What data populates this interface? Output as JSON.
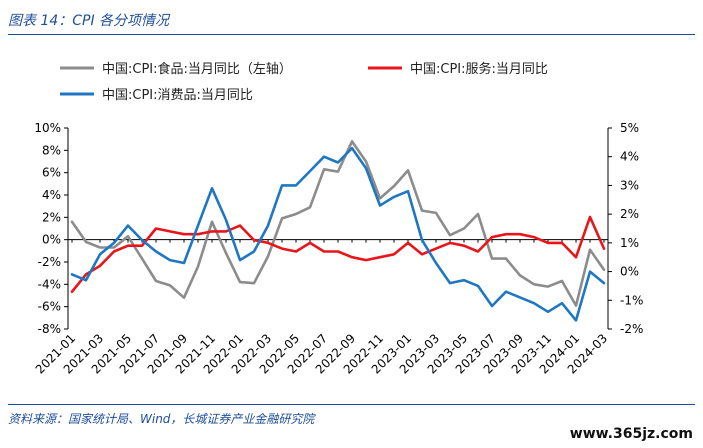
{
  "figure": {
    "title": "图表 14：CPI 各分项情况",
    "source": "资料来源：国家统计局、Wind，长城证券产业金融研究院",
    "watermark": "www.365jz.com"
  },
  "colors": {
    "food": "#8c8c8c",
    "service": "#e8161b",
    "consumer": "#1f77c4",
    "axis": "#000000",
    "accent": "#1f4e9a"
  },
  "chart_data": {
    "type": "line",
    "x_tick_labels": [
      "2021-01",
      "2021-03",
      "2021-05",
      "2021-07",
      "2021-09",
      "2021-11",
      "2022-01",
      "2022-03",
      "2022-05",
      "2022-07",
      "2022-09",
      "2022-11",
      "2023-01",
      "2023-03",
      "2023-05",
      "2023-07",
      "2023-09",
      "2023-11",
      "2024-01",
      "2024-03"
    ],
    "x": [
      "2021-01",
      "2021-02",
      "2021-03",
      "2021-04",
      "2021-05",
      "2021-06",
      "2021-07",
      "2021-08",
      "2021-09",
      "2021-10",
      "2021-11",
      "2021-12",
      "2022-01",
      "2022-02",
      "2022-03",
      "2022-04",
      "2022-05",
      "2022-06",
      "2022-07",
      "2022-08",
      "2022-09",
      "2022-10",
      "2022-11",
      "2022-12",
      "2023-01",
      "2023-02",
      "2023-03",
      "2023-04",
      "2023-05",
      "2023-06",
      "2023-07",
      "2023-08",
      "2023-09",
      "2023-10",
      "2023-11",
      "2023-12",
      "2024-01",
      "2024-02",
      "2024-03"
    ],
    "left_axis": {
      "ylim": [
        -8,
        10
      ],
      "ticks": [
        "10%",
        "8%",
        "6%",
        "4%",
        "2%",
        "0%",
        "-2%",
        "-4%",
        "-6%",
        "-8%"
      ],
      "tick_values": [
        10,
        8,
        6,
        4,
        2,
        0,
        -2,
        -4,
        -6,
        -8
      ]
    },
    "right_axis": {
      "ylim": [
        -2,
        5
      ],
      "ticks": [
        "5%",
        "4%",
        "3%",
        "2%",
        "1%",
        "0%",
        "-1%",
        "-2%"
      ],
      "tick_values": [
        5,
        4,
        3,
        2,
        1,
        0,
        -1,
        -2
      ]
    },
    "legend_position": "top-left",
    "series": [
      {
        "name": "中国:CPI:食品:当月同比（左轴）",
        "axis": "left",
        "color": "#8c8c8c",
        "values": [
          1.6,
          -0.2,
          -0.7,
          -0.7,
          0.3,
          -1.7,
          -3.7,
          -4.1,
          -5.2,
          -2.4,
          1.6,
          -1.2,
          -3.8,
          -3.9,
          -1.5,
          1.9,
          2.3,
          2.9,
          6.3,
          6.1,
          8.8,
          7.0,
          3.7,
          4.8,
          6.2,
          2.6,
          2.4,
          0.4,
          1.0,
          2.3,
          -1.7,
          -1.7,
          -3.2,
          -4.0,
          -4.2,
          -3.7,
          -5.9,
          -0.9,
          -2.7
        ]
      },
      {
        "name": "中国:CPI:服务:当月同比",
        "axis": "right",
        "color": "#e8161b",
        "values": [
          -0.7,
          -0.1,
          0.2,
          0.7,
          0.9,
          0.9,
          1.5,
          1.4,
          1.3,
          1.3,
          1.4,
          1.4,
          1.6,
          1.1,
          1.0,
          0.8,
          0.7,
          1.0,
          0.7,
          0.7,
          0.5,
          0.4,
          0.5,
          0.6,
          1.0,
          0.6,
          0.8,
          1.0,
          0.9,
          0.7,
          1.2,
          1.3,
          1.3,
          1.2,
          1.0,
          1.0,
          0.5,
          1.9,
          0.8
        ]
      },
      {
        "name": "中国:CPI:消费品:当月同比",
        "axis": "right",
        "color": "#1f77c4",
        "values": [
          -0.1,
          -0.3,
          0.6,
          1.0,
          1.6,
          1.1,
          0.7,
          0.4,
          0.3,
          1.6,
          2.9,
          1.8,
          0.4,
          0.7,
          1.6,
          3.0,
          3.0,
          3.5,
          4.0,
          3.8,
          4.3,
          3.6,
          2.3,
          2.6,
          2.8,
          1.1,
          0.3,
          -0.4,
          -0.3,
          -0.5,
          -1.2,
          -0.7,
          -0.9,
          -1.1,
          -1.4,
          -1.1,
          -1.7,
          0.0,
          -0.4
        ]
      }
    ]
  }
}
